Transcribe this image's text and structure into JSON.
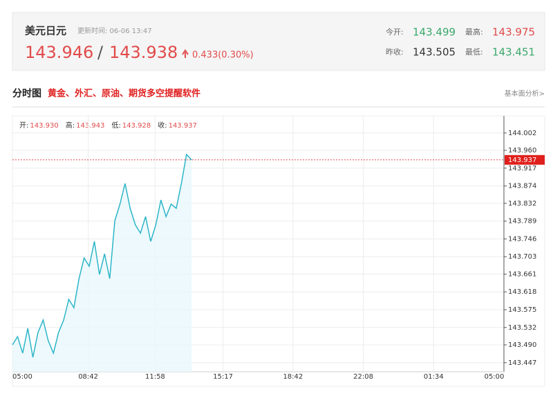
{
  "header": {
    "title": "美元日元",
    "update_time": "更新时间: 06-06 13:47",
    "bid": 143.946,
    "separator": "/",
    "ask": 143.938,
    "change": "0.433(0.30%)",
    "stats": [
      {
        "label": "今开:",
        "value": 143.499,
        "color": "#3aa86b"
      },
      {
        "label": "最高:",
        "value": 143.975,
        "color": "#e24a4a"
      },
      {
        "label": "昨收:",
        "value": 143.505,
        "color": "#333333"
      },
      {
        "label": "最低:",
        "value": 143.451,
        "color": "#3aa86b"
      }
    ]
  },
  "section": {
    "title": "分时图",
    "promo": "黄金、外汇、原油、期货多空提醒软件",
    "link": "基本面分析>"
  },
  "chart_data": {
    "type": "line",
    "color": "#2bb5c8",
    "grid": true,
    "info": {
      "labels": [
        "开:",
        "高:",
        "低:",
        "收:"
      ],
      "values": [
        143.93,
        143.943,
        143.928,
        143.937
      ],
      "value_labels": [
        "143.930",
        "143.943",
        "143.928",
        "143.937"
      ]
    },
    "current": 143.937,
    "x": [
      "05:00",
      "05:15",
      "05:30",
      "05:45",
      "06:00",
      "06:15",
      "06:30",
      "06:45",
      "07:00",
      "07:15",
      "07:30",
      "07:45",
      "08:00",
      "08:15",
      "08:30",
      "08:45",
      "09:00",
      "09:15",
      "09:30",
      "09:45",
      "10:00",
      "10:15",
      "10:30",
      "10:45",
      "11:00",
      "11:15",
      "11:30",
      "11:45",
      "12:00",
      "12:15",
      "12:30",
      "12:45",
      "13:00",
      "13:15",
      "13:30",
      "13:45"
    ],
    "values": [
      143.49,
      143.51,
      143.47,
      143.53,
      143.46,
      143.52,
      143.55,
      143.5,
      143.47,
      143.52,
      143.55,
      143.6,
      143.58,
      143.65,
      143.7,
      143.68,
      143.74,
      143.66,
      143.71,
      143.65,
      143.79,
      143.83,
      143.88,
      143.82,
      143.78,
      143.76,
      143.8,
      143.74,
      143.78,
      143.84,
      143.8,
      143.83,
      143.82,
      143.88,
      143.95,
      143.937
    ],
    "xlim": [
      "05:00",
      "05:00"
    ],
    "xticks": [
      "05:00",
      "08:42",
      "11:58",
      "15:17",
      "18:42",
      "22:08",
      "01:34",
      "05:00"
    ],
    "ylim": [
      143.425,
      144.04
    ],
    "yticks": [
      144.002,
      {
        "value": 143.96,
        "label": "143.960"
      },
      143.917,
      143.874,
      143.832,
      143.789,
      143.746,
      143.703,
      143.661,
      143.618,
      143.575,
      143.532,
      {
        "value": 143.49,
        "label": "143.490"
      },
      143.447
    ]
  }
}
